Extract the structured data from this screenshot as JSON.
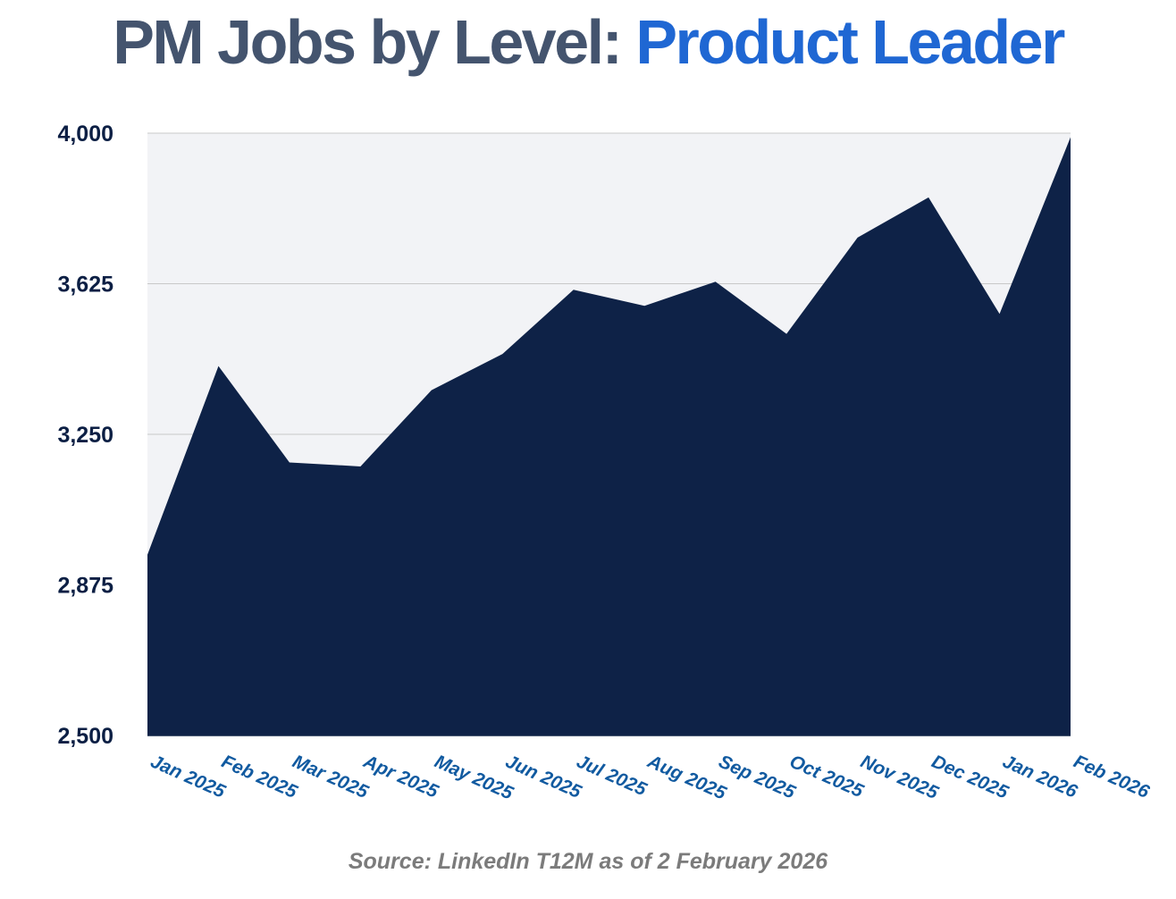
{
  "chart_data": {
    "type": "area",
    "title": {
      "main": "PM Jobs by Level: ",
      "accent": "Product Leader"
    },
    "categories": [
      "Jan 2025",
      "Feb 2025",
      "Mar 2025",
      "Apr 2025",
      "May 2025",
      "Jun 2025",
      "Jul 2025",
      "Aug 2025",
      "Sep 2025",
      "Oct 2025",
      "Nov 2025",
      "Dec 2025",
      "Jan 2026",
      "Feb 2026"
    ],
    "series": [
      {
        "values": [
          2950,
          3420,
          3180,
          3170,
          3360,
          3450,
          3610,
          3570,
          3630,
          3500,
          3740,
          3840,
          3550,
          3990
        ]
      }
    ],
    "yticks": [
      2500,
      2875,
      3250,
      3625,
      4000
    ],
    "ytick_labels": [
      "2,500",
      "2,875",
      "3,250",
      "3,625",
      "4,000"
    ],
    "ylim": [
      2500,
      4000
    ],
    "grid": true,
    "legend": "none",
    "source": "Source: LinkedIn T12M as of 2 February 2026",
    "colors": {
      "area": "#0e2247",
      "plot_background": "#f2f3f6",
      "gridline": "#c8c8c8",
      "title_main": "#44546e",
      "title_accent": "#1f67d3",
      "y_tick_label": "#0c1f44",
      "x_tick_label": "#115aa0",
      "source": "#7b7b7b"
    }
  }
}
